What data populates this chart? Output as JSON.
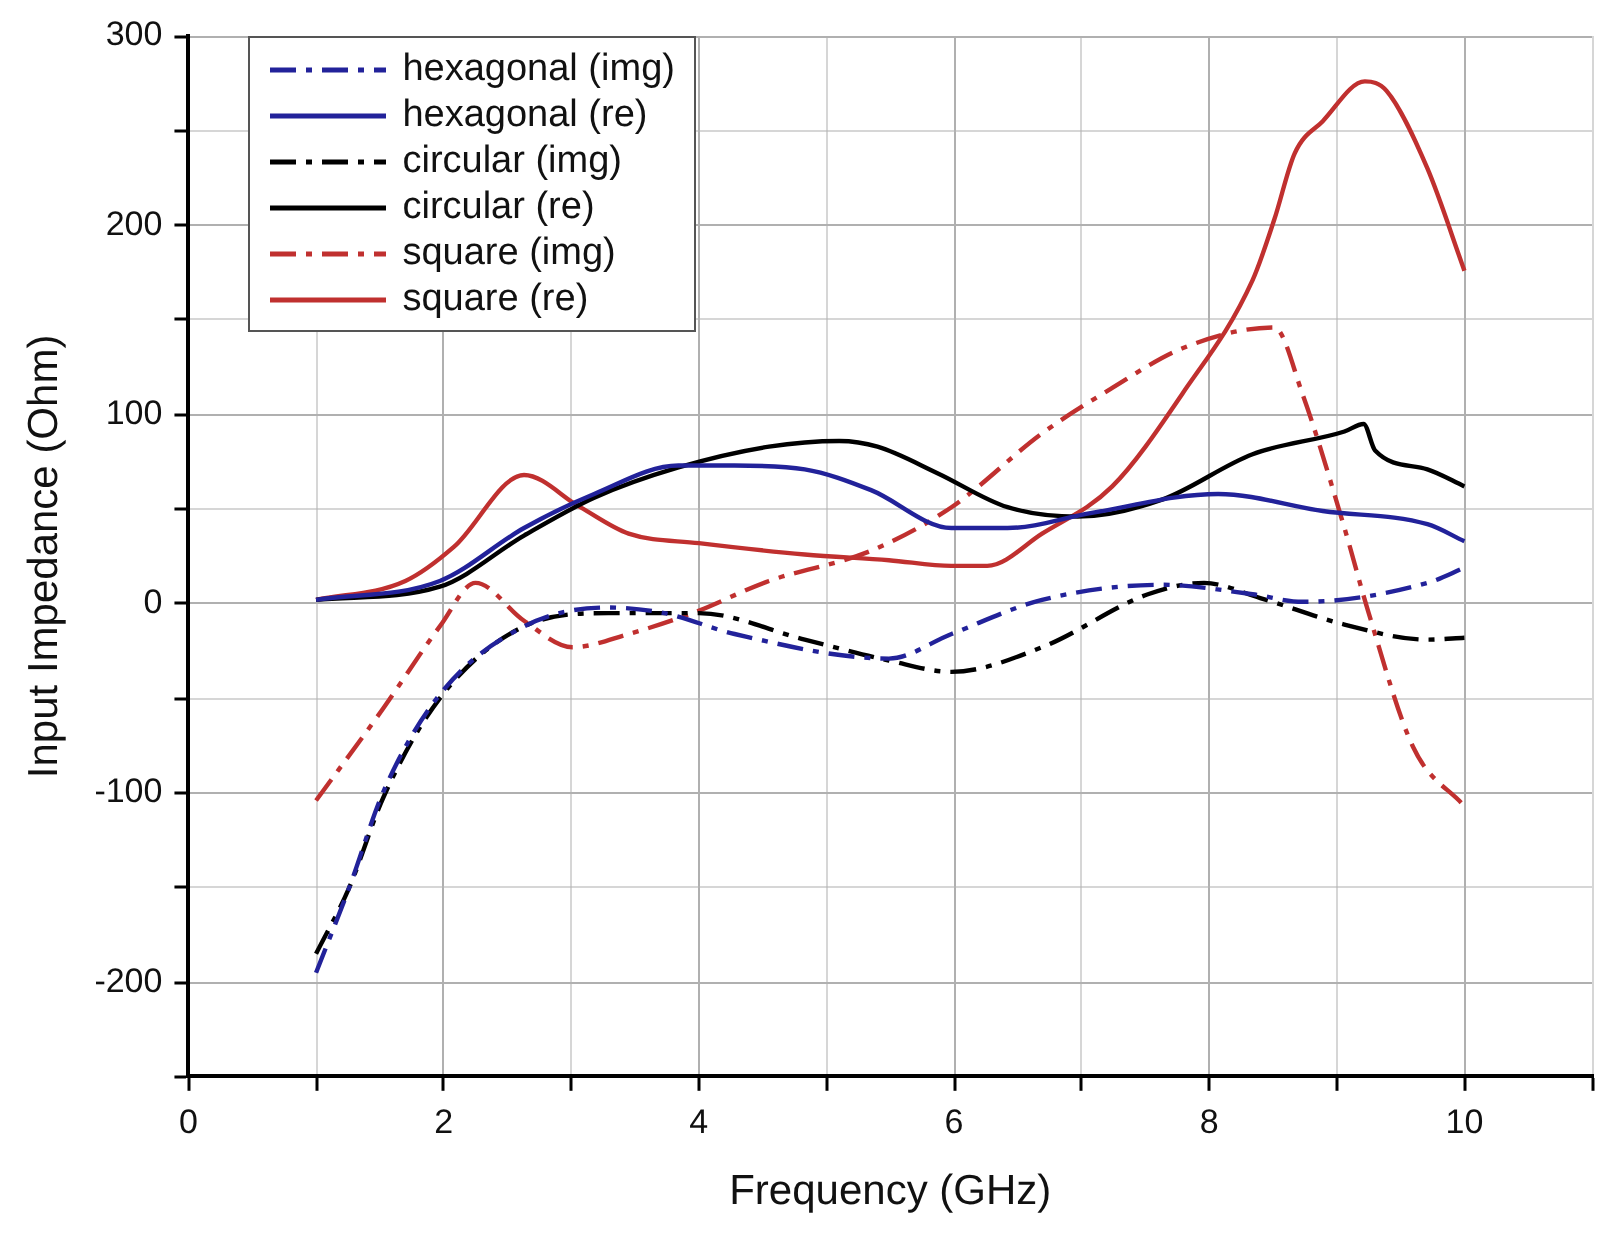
{
  "chart_data": {
    "type": "line",
    "xlabel": "Frequency (GHz)",
    "ylabel": "Input Impedance (Ohm)",
    "xlim": [
      0,
      11
    ],
    "xticks": [
      0,
      {
        "value": 1,
        "label": null
      },
      2,
      {
        "value": 3,
        "label": null
      },
      4,
      {
        "value": 5,
        "label": null
      },
      6,
      {
        "value": 7,
        "label": null
      },
      8,
      {
        "value": 9,
        "label": null
      },
      10,
      {
        "value": 11,
        "label": null
      }
    ],
    "ylim": [
      -250,
      300
    ],
    "yticks": [
      {
        "value": -250,
        "label": null
      },
      -200,
      {
        "value": -150,
        "label": null
      },
      -100,
      {
        "value": -50,
        "label": null
      },
      0,
      {
        "value": 50,
        "label": null
      },
      100,
      {
        "value": 150,
        "label": null
      },
      200,
      {
        "value": 250,
        "label": null
      },
      300
    ],
    "grid": true,
    "legend": "top left",
    "marker": "none",
    "series": [
      {
        "name": "hexagonal (img)",
        "color": "#22229a",
        "line_style": "dashdot",
        "x": [
          1,
          1.26,
          1.53,
          1.97,
          2.63,
          3.29,
          3.73,
          4.28,
          5.49,
          5.98,
          6.69,
          7.63,
          8.34,
          8.73,
          9.71,
          10
        ],
        "values": [
          -195,
          -150,
          -99,
          -48,
          -12,
          -2,
          -5,
          -16,
          -29,
          -16,
          2,
          10,
          5,
          1,
          11,
          19
        ]
      },
      {
        "name": "hexagonal (re)",
        "color": "#22229a",
        "line_style": "solid",
        "x": [
          1,
          1.97,
          2.63,
          3.18,
          3.84,
          4.28,
          4.83,
          5.35,
          5.98,
          6.42,
          7.08,
          8.07,
          8.89,
          9.71,
          10
        ],
        "values": [
          2,
          12,
          40,
          58,
          73,
          73,
          71,
          60,
          40,
          40,
          48,
          58,
          49,
          42,
          33
        ]
      },
      {
        "name": "circular (img)",
        "color": "#000000",
        "line_style": "dashdot",
        "x": [
          1,
          1.26,
          1.53,
          1.97,
          2.63,
          3.29,
          4.0,
          4.83,
          5.49,
          5.98,
          6.69,
          7.52,
          7.96,
          8.4,
          9.06,
          9.71,
          10
        ],
        "values": [
          -185,
          -150,
          -102,
          -50,
          -12,
          -5,
          -5,
          -19,
          -30,
          -36,
          -23,
          5,
          11,
          3,
          -11,
          -19,
          -18
        ]
      },
      {
        "name": "circular (re)",
        "color": "#000000",
        "line_style": "solid",
        "x": [
          1,
          1.97,
          2.63,
          3.18,
          3.84,
          4.55,
          5.1,
          5.4,
          5.87,
          6.42,
          6.97,
          7.63,
          8.34,
          9.06,
          9.21,
          9.3,
          9.71,
          10
        ],
        "values": [
          2,
          9,
          36,
          56,
          72,
          83,
          86,
          83,
          69,
          51,
          46,
          55,
          79,
          91,
          95,
          81,
          71,
          62
        ]
      },
      {
        "name": "square (img)",
        "color": "#c0302f",
        "line_style": "dashdot",
        "x": [
          1,
          1.53,
          1.97,
          2.25,
          2.63,
          3.01,
          3.45,
          3.95,
          4.55,
          5.35,
          5.98,
          6.69,
          7.24,
          7.79,
          8.51,
          8.73,
          9.06,
          9.25,
          9.6,
          10
        ],
        "values": [
          -104,
          -55,
          -12,
          11,
          -9,
          -23,
          -16,
          -5,
          12,
          28,
          51,
          90,
          114,
          135,
          146,
          111,
          40,
          -5,
          -76,
          -107
        ]
      },
      {
        "name": "square (re)",
        "color": "#c0302f",
        "line_style": "solid",
        "x": [
          1,
          1.7,
          2.08,
          2.63,
          3.07,
          3.45,
          4.0,
          4.83,
          5.49,
          5.98,
          6.26,
          6.69,
          7.24,
          7.79,
          8.34,
          8.51,
          8.67,
          8.89,
          9.22,
          9.39,
          9.71,
          10
        ],
        "values": [
          2,
          12,
          30,
          68,
          51,
          37,
          32,
          26,
          23,
          20,
          20,
          37,
          62,
          111,
          171,
          203,
          238,
          255,
          276,
          271,
          230,
          176
        ]
      }
    ]
  }
}
